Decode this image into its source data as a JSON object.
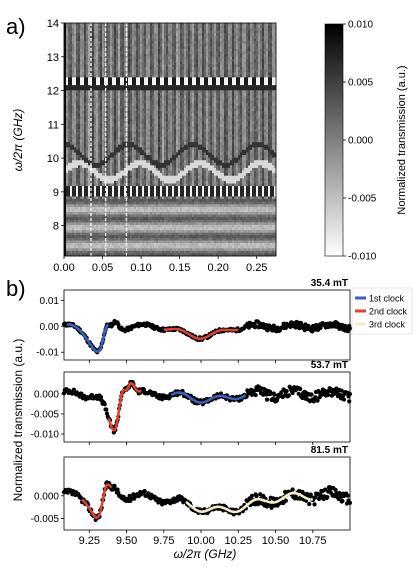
{
  "panel_a": {
    "label": "a)",
    "ylabel": "ω/2π (GHz)",
    "y_ticks": [
      "14",
      "13",
      "12",
      "11",
      "10",
      "9",
      "8"
    ],
    "x_ticks": [
      "0.00",
      "0.05",
      "0.10",
      "0.15",
      "0.20",
      "0.25"
    ],
    "colorbar_label": "Normalized transmission (a.u.)",
    "colorbar_ticks": [
      "0.010",
      "0.005",
      "0.000",
      "-0.005",
      "-0.010"
    ],
    "colors": {
      "max": "#000000",
      "min": "#ffffff",
      "marker_lines": "#ffffff"
    }
  },
  "panel_b": {
    "label": "b)",
    "ylabel": "Normalized transmission (a.u.)",
    "xlabel": "ω/2π (GHz)",
    "x_ticks": [
      "9.25",
      "9.50",
      "9.75",
      "10.00",
      "10.25",
      "10.50",
      "10.75"
    ],
    "legend": [
      {
        "label": "1st clock",
        "color": "#3a5fbf"
      },
      {
        "label": "2nd clock",
        "color": "#d9432f"
      },
      {
        "label": "3rd clock",
        "color": "#f2edc6"
      }
    ],
    "subplots": [
      {
        "field": "35.4 mT",
        "y_ticks": [
          "0.01",
          "0.00",
          "-0.01"
        ]
      },
      {
        "field": "53.7 mT",
        "y_ticks": [
          "0.000",
          "-0.005",
          "-0.010"
        ]
      },
      {
        "field": "81.5 mT",
        "y_ticks": [
          "0.000",
          "-0.005"
        ]
      }
    ]
  },
  "chart_data": [
    {
      "type": "heatmap",
      "xlim": [
        0.0,
        0.275
      ],
      "ylim": [
        7.1,
        14.0
      ],
      "zlim": [
        -0.01,
        0.01
      ],
      "vertical_markers_x": [
        0.035,
        0.054,
        0.081
      ],
      "features": [
        {
          "name": "upper band",
          "y": 12.3
        },
        {
          "name": "lower band",
          "y": 9.0
        },
        {
          "name": "middle band",
          "y": 9.6
        }
      ]
    },
    {
      "type": "scatter",
      "field": "35.4 mT",
      "xlim": [
        9.08,
        11.0
      ],
      "ylim": [
        -0.013,
        0.014
      ],
      "fits": [
        {
          "series": "1st clock",
          "x_range": [
            9.1,
            9.38
          ],
          "dip_x": 9.33,
          "dip_y": -0.011
        },
        {
          "series": "2nd clock",
          "x_range": [
            9.75,
            10.25
          ],
          "dip_x": 10.0,
          "dip_y": -0.004
        }
      ]
    },
    {
      "type": "scatter",
      "field": "53.7 mT",
      "xlim": [
        9.08,
        11.0
      ],
      "ylim": [
        -0.012,
        0.0055
      ],
      "fits": [
        {
          "series": "2nd clock",
          "x_range": [
            9.38,
            9.6
          ],
          "dip_x": 9.43,
          "dip_y": -0.0105
        },
        {
          "series": "1st clock",
          "x_range": [
            9.8,
            10.3
          ],
          "dip_x": 10.05,
          "dip_y": -0.0015
        }
      ]
    },
    {
      "type": "scatter",
      "field": "81.5 mT",
      "xlim": [
        9.08,
        11.0
      ],
      "ylim": [
        -0.0075,
        0.0085
      ],
      "fits": [
        {
          "series": "2nd clock",
          "x_range": [
            9.2,
            9.4
          ],
          "dip_x": 9.32,
          "dip_y": -0.0055
        },
        {
          "series": "3rd clock",
          "x_range": [
            9.9,
            10.75
          ],
          "dip_x": 10.12,
          "dip_y": -0.0032
        }
      ]
    }
  ]
}
